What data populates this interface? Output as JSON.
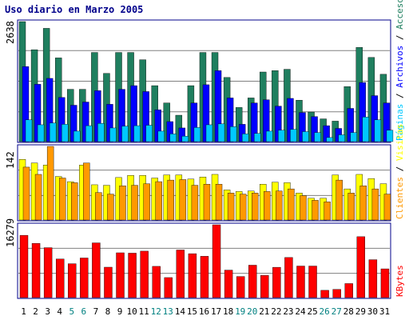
{
  "title": "Uso diario en Marzo 2005",
  "colors": {
    "accesos": "#1f7f5f",
    "paginas": "#00c8ff",
    "archivos": "#0000ff",
    "visitas": "#ffff00",
    "clientes": "#ff9900",
    "kbytes": "#ff0000",
    "frame": "#00008b",
    "weekend": "#008080"
  },
  "chart_data": [
    {
      "type": "bar",
      "name": "traffic",
      "y_label": "2638",
      "ylim": [
        0,
        2638
      ],
      "x": [
        1,
        2,
        3,
        4,
        5,
        6,
        7,
        8,
        9,
        10,
        11,
        12,
        13,
        14,
        15,
        16,
        17,
        18,
        19,
        20,
        21,
        22,
        23,
        24,
        25,
        26,
        27,
        28,
        29,
        30,
        31
      ],
      "series": [
        {
          "name": "Accesos",
          "values": [
            2638,
            2020,
            2490,
            1840,
            1150,
            1150,
            1960,
            1500,
            1960,
            1960,
            1800,
            1230,
            850,
            580,
            1230,
            1960,
            1960,
            1410,
            750,
            960,
            1530,
            1560,
            1590,
            910,
            650,
            500,
            450,
            1210,
            2070,
            1850,
            1480
          ]
        },
        {
          "name": "Archivos",
          "values": [
            1650,
            1260,
            1390,
            970,
            800,
            870,
            1120,
            820,
            1150,
            1230,
            1100,
            700,
            440,
            300,
            850,
            1250,
            1560,
            960,
            380,
            850,
            920,
            780,
            950,
            640,
            550,
            350,
            290,
            730,
            1300,
            1010,
            850
          ]
        },
        {
          "name": "Páginas",
          "values": [
            480,
            370,
            410,
            380,
            230,
            350,
            400,
            300,
            340,
            350,
            360,
            230,
            170,
            120,
            310,
            370,
            390,
            330,
            170,
            180,
            230,
            250,
            270,
            220,
            200,
            90,
            150,
            200,
            540,
            480,
            250
          ]
        }
      ],
      "legend": [
        "Páginas",
        "Archivos",
        "Accesos"
      ]
    },
    {
      "type": "bar",
      "name": "visitors",
      "y_label": "142",
      "ylim": [
        0,
        142
      ],
      "x": [
        1,
        2,
        3,
        4,
        5,
        6,
        7,
        8,
        9,
        10,
        11,
        12,
        13,
        14,
        15,
        16,
        17,
        18,
        19,
        20,
        21,
        22,
        23,
        24,
        25,
        26,
        27,
        28,
        29,
        30,
        31
      ],
      "series": [
        {
          "name": "Visitas",
          "values": [
            117,
            110,
            106,
            84,
            74,
            106,
            68,
            67,
            82,
            86,
            86,
            81,
            87,
            87,
            79,
            83,
            88,
            58,
            55,
            56,
            69,
            73,
            72,
            52,
            42,
            42,
            87,
            60,
            88,
            80,
            70
          ]
        },
        {
          "name": "Clientes",
          "values": [
            102,
            88,
            142,
            81,
            72,
            110,
            53,
            50,
            66,
            67,
            70,
            74,
            77,
            78,
            67,
            69,
            69,
            52,
            50,
            52,
            55,
            56,
            60,
            47,
            38,
            35,
            77,
            52,
            66,
            60,
            50
          ]
        }
      ],
      "legend": [
        "Clientes",
        "Visitas"
      ]
    },
    {
      "type": "bar",
      "name": "kbytes",
      "y_label": "16279",
      "ylim": [
        0,
        16279
      ],
      "x": [
        1,
        2,
        3,
        4,
        5,
        6,
        7,
        8,
        9,
        10,
        11,
        12,
        13,
        14,
        15,
        16,
        17,
        18,
        19,
        20,
        21,
        22,
        23,
        24,
        25,
        26,
        27,
        28,
        29,
        30,
        31
      ],
      "series": [
        {
          "name": "KBytes",
          "values": [
            13930,
            12120,
            11170,
            8630,
            7580,
            8860,
            12240,
            6800,
            10020,
            9940,
            10390,
            6990,
            4480,
            10650,
            9820,
            9240,
            16279,
            6150,
            4720,
            7250,
            4960,
            6780,
            8970,
            7060,
            7060,
            1630,
            1840,
            3140,
            13620,
            8480,
            6430
          ]
        }
      ],
      "legend": [
        "KBytes"
      ]
    }
  ],
  "x_labels": [
    "1",
    "2",
    "3",
    "4",
    "5",
    "6",
    "7",
    "8",
    "9",
    "10",
    "11",
    "12",
    "13",
    "14",
    "15",
    "16",
    "17",
    "18",
    "19",
    "20",
    "21",
    "22",
    "23",
    "24",
    "25",
    "26",
    "27",
    "28",
    "29",
    "30",
    "31"
  ],
  "weekend_days": [
    5,
    6,
    12,
    13,
    19,
    20,
    26,
    27
  ]
}
